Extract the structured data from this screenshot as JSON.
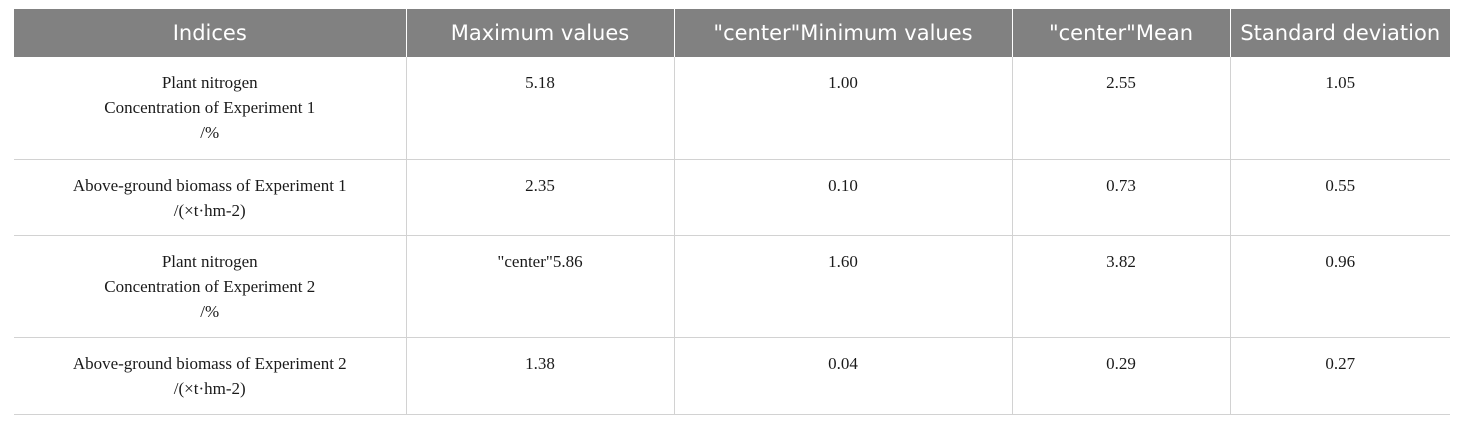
{
  "table": {
    "headers": [
      "Indices",
      "Maximum values",
      "\"center\"Minimum values",
      "\"center\"Mean",
      "Standard deviation"
    ],
    "rows": [
      {
        "index_lines": [
          "Plant nitrogen",
          "Concentration of Experiment 1",
          "/%"
        ],
        "max": "5.18",
        "min": "1.00",
        "mean": "2.55",
        "sd": "1.05"
      },
      {
        "index_lines": [
          "Above-ground biomass of Experiment 1",
          "/(×t·hm-2)"
        ],
        "max": "2.35",
        "min": "0.10",
        "mean": "0.73",
        "sd": "0.55"
      },
      {
        "index_lines": [
          "Plant nitrogen",
          "Concentration of Experiment 2",
          "/%"
        ],
        "max": "\"center\"5.86",
        "min": "1.60",
        "mean": "3.82",
        "sd": "0.96"
      },
      {
        "index_lines": [
          "Above-ground biomass of Experiment 2",
          "/(×t·hm-2)"
        ],
        "max": "1.38",
        "min": "0.04",
        "mean": "0.29",
        "sd": "0.27"
      }
    ]
  }
}
